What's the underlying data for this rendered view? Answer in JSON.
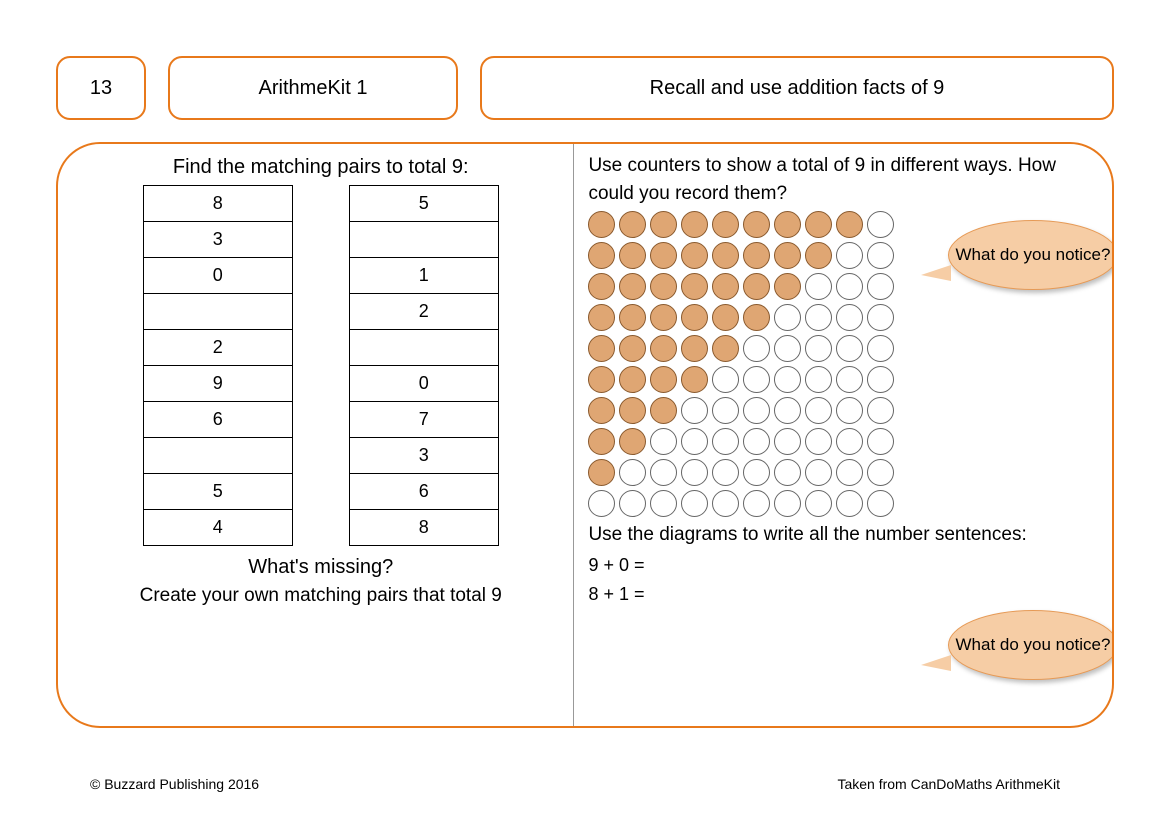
{
  "colors": {
    "accent": "#e8791b",
    "callout_fill": "#f6cda5",
    "callout_border": "#e69a56",
    "counter_fill": "#dfa673",
    "counter_border": "#8a5a2e",
    "empty_fill": "#ffffff",
    "empty_border": "#666666"
  },
  "header": {
    "page_number": "13",
    "title": "ArithmeKit 1",
    "topic": "Recall and use addition facts of 9"
  },
  "left": {
    "title": "Find the matching pairs to total 9:",
    "col1": [
      "8",
      "3",
      "0",
      "",
      "2",
      "9",
      "6",
      "",
      "5",
      "4"
    ],
    "col2": [
      "5",
      "",
      "1",
      "2",
      "",
      "0",
      "7",
      "3",
      "6",
      "8"
    ],
    "q1": "What's missing?",
    "q2": "Create your own matching pairs that total 9"
  },
  "right": {
    "instr": "Use counters to show a total of 9 in different ways. How could you record them?",
    "counter_rows": [
      9,
      8,
      7,
      6,
      5,
      4,
      3,
      2,
      1,
      0
    ],
    "total_per_row": 10,
    "sentence_intro": "Use the diagrams to write all the number sentences:",
    "eq1": "9 + 0 =",
    "eq2": "8 + 1 =",
    "callout_text": "What do you notice?"
  },
  "footer": {
    "left": "© Buzzard Publishing 2016",
    "right": "Taken from CanDoMaths ArithmeKit"
  }
}
